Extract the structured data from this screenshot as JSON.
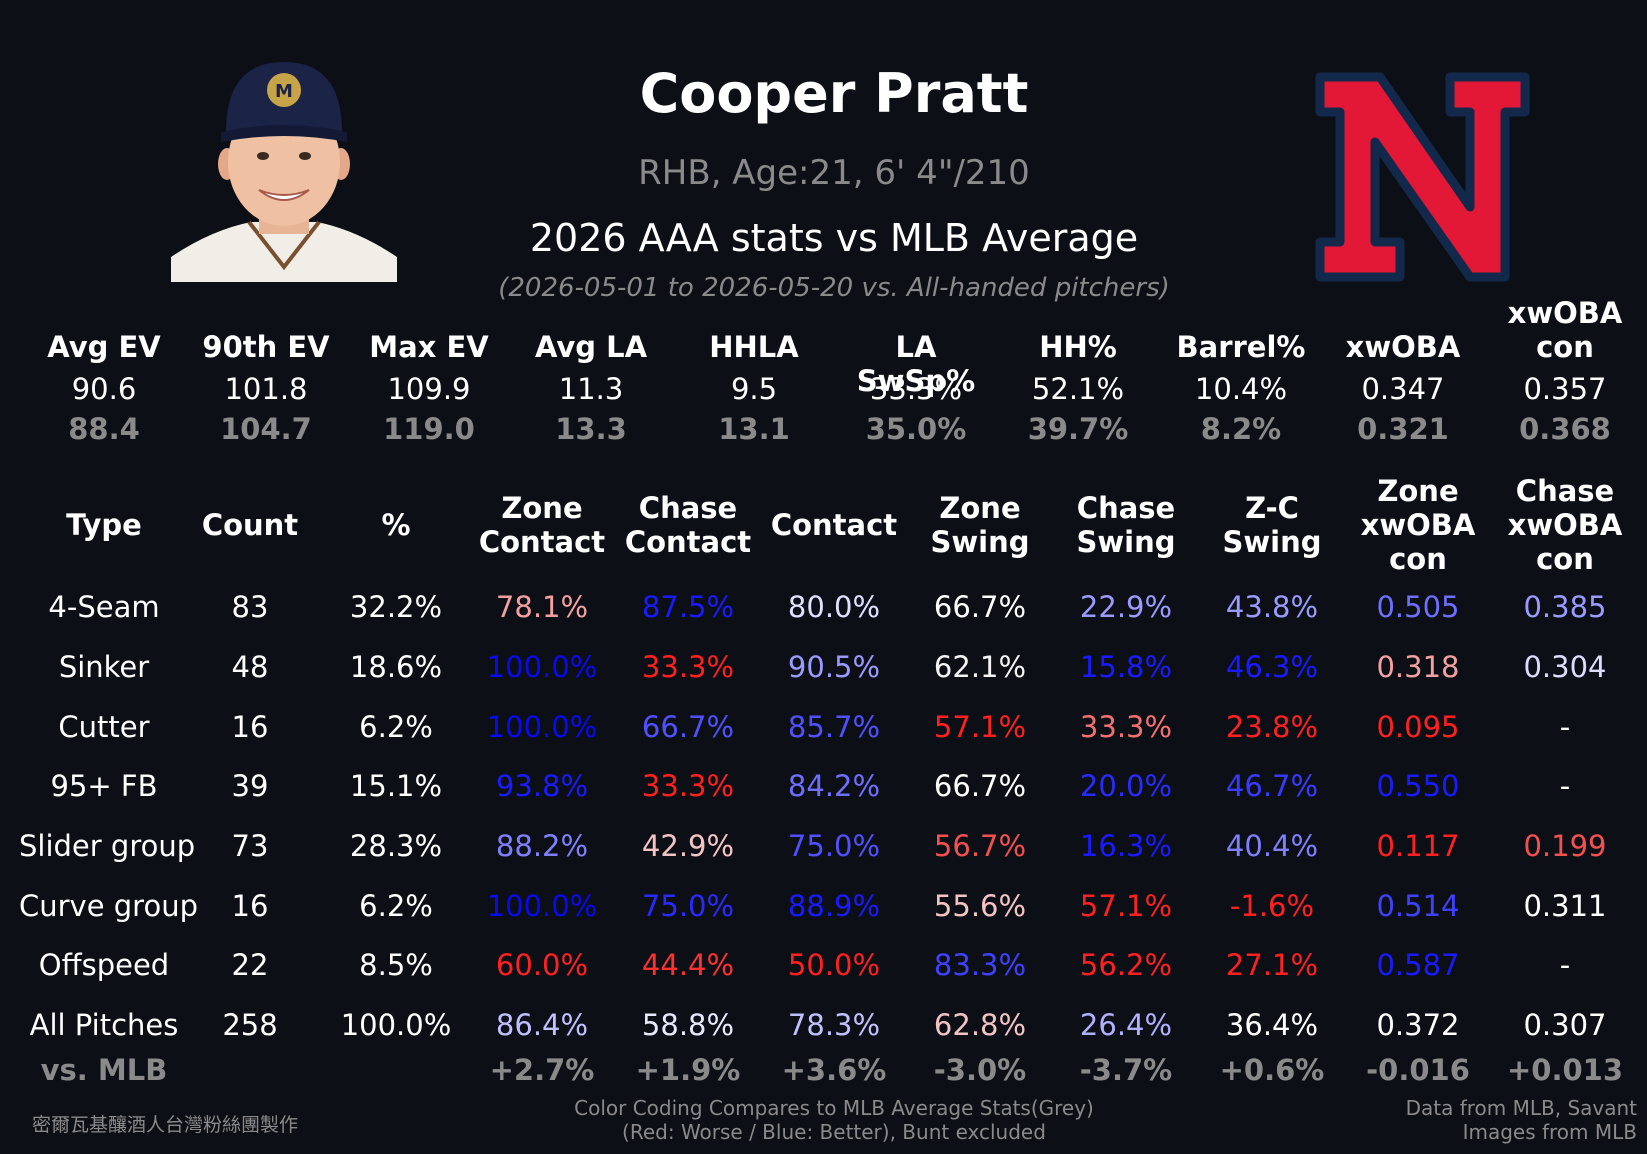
{
  "header": {
    "player_name": "Cooper Pratt",
    "bio": "RHB, Age:21, 6' 4\"/210",
    "title": "2026 AAA stats vs MLB Average",
    "date_range": "(2026-05-01 to 2026-05-20 vs. All-handed pitchers)"
  },
  "images": {
    "headshot_icon": "player-headshot",
    "logo_icon": "team-logo-N",
    "logo_color": "#e31837",
    "logo_outline": "#13294b"
  },
  "summary": {
    "columns": [
      {
        "label": "Avg EV",
        "value": "90.6",
        "mlb": "88.4"
      },
      {
        "label": "90th EV",
        "value": "101.8",
        "mlb": "104.7"
      },
      {
        "label": "Max EV",
        "value": "109.9",
        "mlb": "119.0"
      },
      {
        "label": "Avg LA",
        "value": "11.3",
        "mlb": "13.3"
      },
      {
        "label": "HHLA",
        "value": "9.5",
        "mlb": "13.1"
      },
      {
        "label": "LA SwSp%",
        "value": "33.3%",
        "mlb": "35.0%"
      },
      {
        "label": "HH%",
        "value": "52.1%",
        "mlb": "39.7%"
      },
      {
        "label": "Barrel%",
        "value": "10.4%",
        "mlb": "8.2%"
      },
      {
        "label": "xwOBA",
        "value": "0.347",
        "mlb": "0.321"
      },
      {
        "label": "xwOBA\ncon",
        "value": "0.357",
        "mlb": "0.368"
      }
    ]
  },
  "table": {
    "headers": [
      "Type",
      "Count",
      "%",
      "Zone\nContact",
      "Chase\nContact",
      "Contact",
      "Zone\nSwing",
      "Chase\nSwing",
      "Z-C\nSwing",
      "Zone\nxwOBA\ncon",
      "Chase\nxwOBA\ncon"
    ],
    "rows": [
      {
        "type": "4-Seam",
        "count": "83",
        "pct": "32.2%",
        "cells": [
          {
            "v": "78.1%",
            "c": "#f4a0a0"
          },
          {
            "v": "87.5%",
            "c": "#1a1aff"
          },
          {
            "v": "80.0%",
            "c": "#e0e0ff"
          },
          {
            "v": "66.7%",
            "c": "#ffffff"
          },
          {
            "v": "22.9%",
            "c": "#9a9aff"
          },
          {
            "v": "43.8%",
            "c": "#9a9aff"
          },
          {
            "v": "0.505",
            "c": "#6e6eff"
          },
          {
            "v": "0.385",
            "c": "#9a9aff"
          }
        ]
      },
      {
        "type": "Sinker",
        "count": "48",
        "pct": "18.6%",
        "cells": [
          {
            "v": "100.0%",
            "c": "#0a0aee"
          },
          {
            "v": "33.3%",
            "c": "#ff2020"
          },
          {
            "v": "90.5%",
            "c": "#9a9aff"
          },
          {
            "v": "62.1%",
            "c": "#f4f4f4"
          },
          {
            "v": "15.8%",
            "c": "#1a1aff"
          },
          {
            "v": "46.3%",
            "c": "#1a1aff"
          },
          {
            "v": "0.318",
            "c": "#f4a0a0"
          },
          {
            "v": "0.304",
            "c": "#dcdcff"
          }
        ]
      },
      {
        "type": "Cutter",
        "count": "16",
        "pct": "6.2%",
        "cells": [
          {
            "v": "100.0%",
            "c": "#0a0aee"
          },
          {
            "v": "66.7%",
            "c": "#5050ff"
          },
          {
            "v": "85.7%",
            "c": "#5050ff"
          },
          {
            "v": "57.1%",
            "c": "#ff2020"
          },
          {
            "v": "33.3%",
            "c": "#f47070"
          },
          {
            "v": "23.8%",
            "c": "#ff2020"
          },
          {
            "v": "0.095",
            "c": "#ff2020"
          },
          {
            "v": "-",
            "c": "#ffffff"
          }
        ]
      },
      {
        "type": "95+ FB",
        "count": "39",
        "pct": "15.1%",
        "cells": [
          {
            "v": "93.8%",
            "c": "#1a1aff"
          },
          {
            "v": "33.3%",
            "c": "#ff2020"
          },
          {
            "v": "84.2%",
            "c": "#6e6eff"
          },
          {
            "v": "66.7%",
            "c": "#ffffff"
          },
          {
            "v": "20.0%",
            "c": "#2a2aff"
          },
          {
            "v": "46.7%",
            "c": "#3a3aff"
          },
          {
            "v": "0.550",
            "c": "#1a1aff"
          },
          {
            "v": "-",
            "c": "#ffffff"
          }
        ]
      },
      {
        "type": "Slider group",
        "count": "73",
        "pct": "28.3%",
        "cells": [
          {
            "v": "88.2%",
            "c": "#8080ff"
          },
          {
            "v": "42.9%",
            "c": "#f4c4c4"
          },
          {
            "v": "75.0%",
            "c": "#5050ff"
          },
          {
            "v": "56.7%",
            "c": "#f45050"
          },
          {
            "v": "16.3%",
            "c": "#1a1aff"
          },
          {
            "v": "40.4%",
            "c": "#8080ff"
          },
          {
            "v": "0.117",
            "c": "#ff2020"
          },
          {
            "v": "0.199",
            "c": "#f45050"
          }
        ]
      },
      {
        "type": "Curve group",
        "count": "16",
        "pct": "6.2%",
        "cells": [
          {
            "v": "100.0%",
            "c": "#0a0aee"
          },
          {
            "v": "75.0%",
            "c": "#2a2aff"
          },
          {
            "v": "88.9%",
            "c": "#1a1aff"
          },
          {
            "v": "55.6%",
            "c": "#f4c4c4"
          },
          {
            "v": "57.1%",
            "c": "#ff2020"
          },
          {
            "v": "-1.6%",
            "c": "#ff2020"
          },
          {
            "v": "0.514",
            "c": "#4040ff"
          },
          {
            "v": "0.311",
            "c": "#ffffff"
          }
        ]
      },
      {
        "type": "Offspeed",
        "count": "22",
        "pct": "8.5%",
        "cells": [
          {
            "v": "60.0%",
            "c": "#ff2020"
          },
          {
            "v": "44.4%",
            "c": "#ff3030"
          },
          {
            "v": "50.0%",
            "c": "#ff2020"
          },
          {
            "v": "83.3%",
            "c": "#4040ff"
          },
          {
            "v": "56.2%",
            "c": "#ff2020"
          },
          {
            "v": "27.1%",
            "c": "#ff2020"
          },
          {
            "v": "0.587",
            "c": "#1a1aff"
          },
          {
            "v": "-",
            "c": "#ffffff"
          }
        ]
      },
      {
        "type": "All Pitches",
        "count": "258",
        "pct": "100.0%",
        "cells": [
          {
            "v": "86.4%",
            "c": "#c0c0ff"
          },
          {
            "v": "58.8%",
            "c": "#e8e8ff"
          },
          {
            "v": "78.3%",
            "c": "#c0c0ff"
          },
          {
            "v": "62.8%",
            "c": "#f4c4c4"
          },
          {
            "v": "26.4%",
            "c": "#b0b0ff"
          },
          {
            "v": "36.4%",
            "c": "#ffffff"
          },
          {
            "v": "0.372",
            "c": "#ffffff"
          },
          {
            "v": "0.307",
            "c": "#ffffff"
          }
        ]
      }
    ],
    "vs_label": "vs. MLB",
    "vs_values": [
      "+2.7%",
      "+1.9%",
      "+3.6%",
      "-3.0%",
      "-3.7%",
      "+0.6%",
      "-0.016",
      "+0.013"
    ]
  },
  "footer": {
    "credit_left": "密爾瓦基釀酒人台灣粉絲團製作",
    "note_line1": "Color Coding Compares to MLB Average Stats(Grey)",
    "note_line2": "(Red: Worse / Blue: Better), Bunt excluded",
    "credit_right_line1": "Data from MLB, Savant",
    "credit_right_line2": "Images from MLB"
  }
}
